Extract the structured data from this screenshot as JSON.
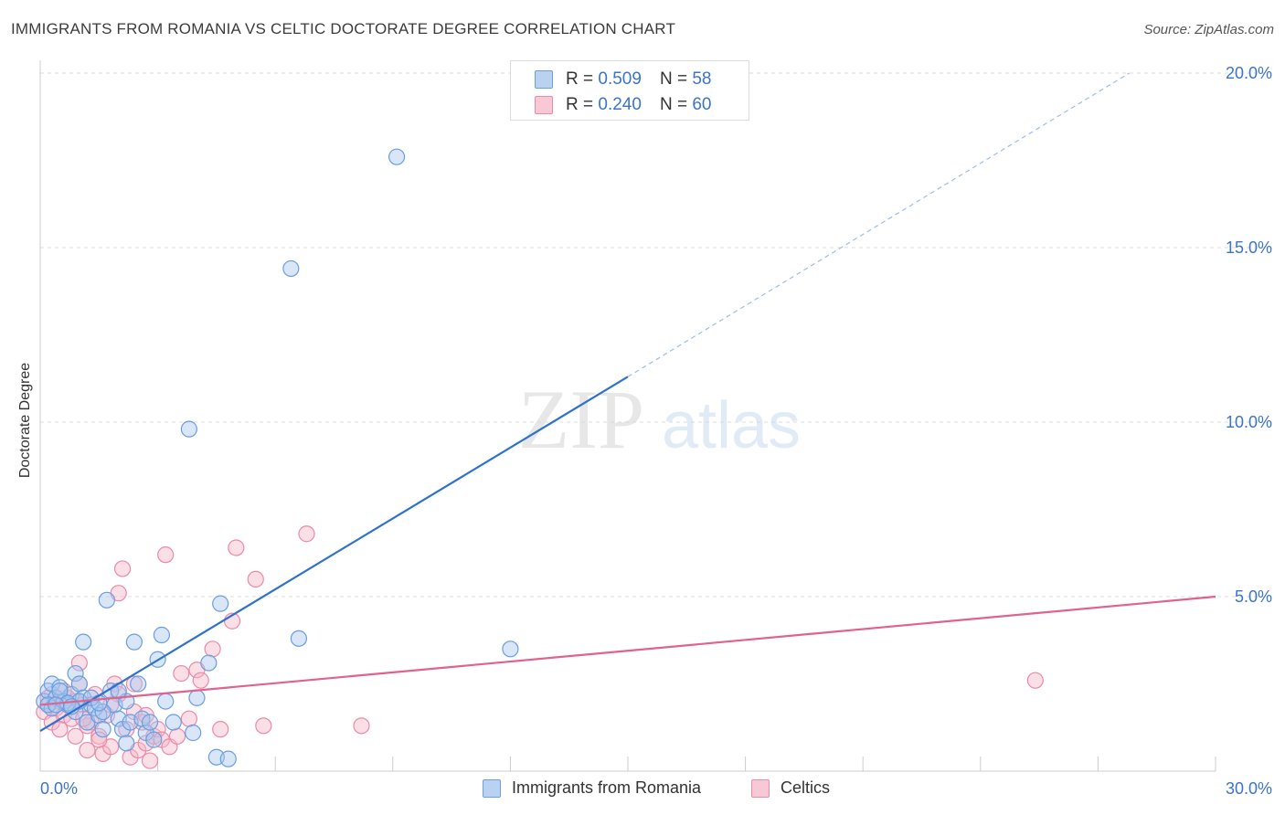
{
  "title": "IMMIGRANTS FROM ROMANIA VS CELTIC DOCTORATE DEGREE CORRELATION CHART",
  "source": "Source: ZipAtlas.com",
  "watermark": {
    "zip": "ZIP",
    "atlas": "atlas"
  },
  "legend": {
    "r_label": "R =",
    "n_label": "N =",
    "series1": {
      "r": "0.509",
      "n": "58"
    },
    "series2": {
      "r": "0.240",
      "n": "60"
    }
  },
  "colors": {
    "blue_fill": "#a9c8f0",
    "blue_stroke": "#6a9ee0",
    "blue_line": "#2f72cc",
    "pink_fill": "#f5b8c9",
    "pink_stroke": "#ec8aa8",
    "pink_line": "#e0628f",
    "tick_blue": "#3b74c9",
    "grid": "#dcdcdc"
  },
  "chart_data": {
    "type": "scatter",
    "title": "IMMIGRANTS FROM ROMANIA VS CELTIC DOCTORATE DEGREE CORRELATION CHART",
    "xlabel": "",
    "ylabel": "Doctorate Degree",
    "xlim": [
      0,
      30
    ],
    "ylim": [
      0,
      20
    ],
    "x_ticks": [
      {
        "value": 0,
        "label": "0.0%"
      },
      {
        "value": 30,
        "label": "30.0%"
      }
    ],
    "y_ticks": [
      {
        "value": 5,
        "label": "5.0%"
      },
      {
        "value": 10,
        "label": "10.0%"
      },
      {
        "value": 15,
        "label": "15.0%"
      },
      {
        "value": 20,
        "label": "20.0%"
      }
    ],
    "series": [
      {
        "name": "Immigrants from Romania",
        "color": "blue",
        "trend": {
          "x0": 0,
          "y0": 1.15,
          "x1": 15,
          "y1": 11.3,
          "dash_to_x": 27.8,
          "dash_to_y": 20.0
        },
        "points": [
          [
            0.1,
            2.0
          ],
          [
            0.2,
            2.3
          ],
          [
            0.3,
            2.5
          ],
          [
            0.3,
            1.8
          ],
          [
            0.4,
            2.1
          ],
          [
            0.5,
            2.4
          ],
          [
            0.6,
            2.0
          ],
          [
            0.7,
            1.9
          ],
          [
            0.8,
            2.2
          ],
          [
            0.9,
            1.7
          ],
          [
            0.9,
            2.8
          ],
          [
            1.0,
            2.5
          ],
          [
            1.1,
            2.1
          ],
          [
            1.1,
            3.7
          ],
          [
            1.2,
            1.4
          ],
          [
            1.3,
            1.9
          ],
          [
            1.4,
            1.8
          ],
          [
            1.5,
            1.6
          ],
          [
            1.6,
            1.2
          ],
          [
            1.7,
            4.9
          ],
          [
            1.8,
            2.3
          ],
          [
            1.9,
            1.9
          ],
          [
            2.0,
            1.5
          ],
          [
            2.1,
            1.2
          ],
          [
            2.2,
            0.8
          ],
          [
            2.3,
            1.4
          ],
          [
            2.4,
            3.7
          ],
          [
            2.5,
            2.5
          ],
          [
            2.6,
            1.5
          ],
          [
            2.7,
            1.1
          ],
          [
            2.8,
            1.4
          ],
          [
            2.9,
            0.9
          ],
          [
            3.0,
            3.2
          ],
          [
            3.1,
            3.9
          ],
          [
            3.2,
            2.0
          ],
          [
            3.4,
            1.4
          ],
          [
            3.9,
            1.1
          ],
          [
            4.0,
            2.1
          ],
          [
            4.3,
            3.1
          ],
          [
            4.5,
            0.4
          ],
          [
            4.6,
            4.8
          ],
          [
            4.8,
            0.35
          ],
          [
            6.4,
            14.4
          ],
          [
            6.6,
            3.8
          ],
          [
            9.1,
            17.6
          ],
          [
            12.0,
            3.5
          ],
          [
            3.8,
            9.8
          ],
          [
            0.2,
            1.9
          ],
          [
            0.5,
            2.3
          ],
          [
            1.0,
            2.0
          ],
          [
            1.3,
            2.1
          ],
          [
            0.7,
            1.95
          ],
          [
            2.2,
            2.0
          ],
          [
            0.4,
            1.9
          ],
          [
            1.6,
            1.7
          ],
          [
            0.8,
            1.85
          ],
          [
            2.0,
            2.3
          ],
          [
            1.5,
            1.95
          ]
        ]
      },
      {
        "name": "Celtics",
        "color": "pink",
        "trend": {
          "x0": 0,
          "y0": 1.9,
          "x1": 30,
          "y1": 5.0
        },
        "points": [
          [
            0.1,
            1.7
          ],
          [
            0.2,
            1.9
          ],
          [
            0.3,
            2.2
          ],
          [
            0.4,
            1.8
          ],
          [
            0.5,
            2.0
          ],
          [
            0.6,
            1.6
          ],
          [
            0.7,
            2.1
          ],
          [
            0.8,
            1.5
          ],
          [
            0.9,
            1.0
          ],
          [
            1.0,
            3.1
          ],
          [
            1.0,
            2.5
          ],
          [
            1.1,
            1.9
          ],
          [
            1.2,
            0.6
          ],
          [
            1.3,
            1.4
          ],
          [
            1.4,
            2.2
          ],
          [
            1.5,
            1.0
          ],
          [
            1.6,
            0.5
          ],
          [
            1.7,
            1.6
          ],
          [
            1.8,
            0.7
          ],
          [
            1.9,
            2.5
          ],
          [
            2.0,
            5.1
          ],
          [
            2.0,
            2.2
          ],
          [
            2.1,
            5.8
          ],
          [
            2.2,
            1.2
          ],
          [
            2.3,
            0.4
          ],
          [
            2.4,
            1.7
          ],
          [
            2.5,
            0.6
          ],
          [
            2.6,
            1.4
          ],
          [
            2.7,
            0.8
          ],
          [
            2.8,
            0.3
          ],
          [
            2.9,
            1.0
          ],
          [
            3.0,
            1.2
          ],
          [
            3.1,
            0.9
          ],
          [
            3.2,
            6.2
          ],
          [
            3.3,
            0.7
          ],
          [
            3.6,
            2.8
          ],
          [
            3.8,
            1.5
          ],
          [
            4.0,
            2.9
          ],
          [
            4.1,
            2.6
          ],
          [
            4.4,
            3.5
          ],
          [
            4.6,
            1.2
          ],
          [
            4.9,
            4.3
          ],
          [
            5.0,
            6.4
          ],
          [
            5.5,
            5.5
          ],
          [
            5.7,
            1.3
          ],
          [
            6.8,
            6.8
          ],
          [
            8.2,
            1.3
          ],
          [
            25.4,
            2.6
          ],
          [
            0.3,
            1.4
          ],
          [
            0.6,
            2.3
          ],
          [
            1.2,
            1.3
          ],
          [
            1.8,
            1.9
          ],
          [
            2.4,
            2.5
          ],
          [
            0.9,
            2.0
          ],
          [
            1.5,
            0.9
          ],
          [
            2.7,
            1.6
          ],
          [
            0.2,
            2.1
          ],
          [
            1.1,
            1.5
          ],
          [
            3.5,
            1.0
          ],
          [
            0.5,
            1.2
          ]
        ]
      }
    ]
  },
  "bottom_legend": {
    "series1": "Immigrants from Romania",
    "series2": "Celtics"
  }
}
